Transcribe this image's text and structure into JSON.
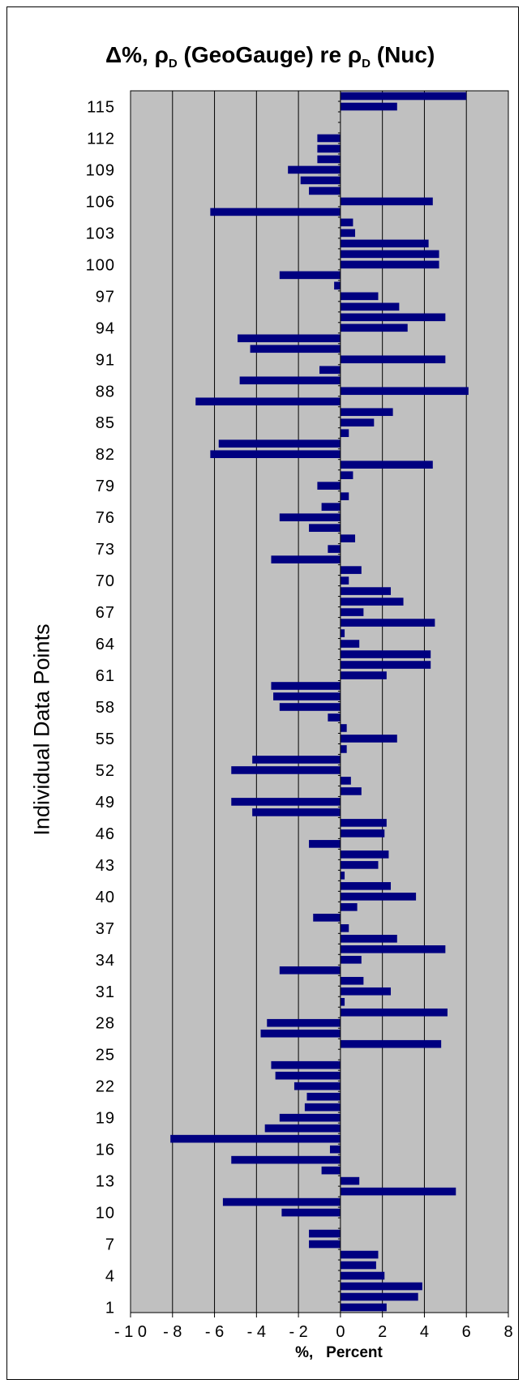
{
  "chart_data": {
    "type": "bar",
    "orientation": "horizontal",
    "title": {
      "delta": "Δ%,",
      "rho1": "ρ",
      "sub1": "D",
      "mid": "(GeoGauge) re",
      "rho2": "ρ",
      "sub2": "D",
      "end": "(Nuc)"
    },
    "xlabel": "%,   Percent",
    "ylabel": "Individual Data Points",
    "xlim": [
      -10,
      8
    ],
    "xticks": [
      -10,
      -8,
      -6,
      -4,
      -2,
      0,
      2,
      4,
      6,
      8
    ],
    "xtick_labels": [
      "- 1 0",
      "- 8",
      "- 6",
      "- 4",
      "- 2",
      "0",
      "2",
      "4",
      "6",
      "8"
    ],
    "ytick_labels": [
      "1",
      "4",
      "7",
      "10",
      "13",
      "16",
      "19",
      "22",
      "25",
      "28",
      "31",
      "34",
      "37",
      "40",
      "43",
      "46",
      "49",
      "52",
      "55",
      "58",
      "61",
      "64",
      "67",
      "70",
      "73",
      "76",
      "79",
      "82",
      "85",
      "88",
      "91",
      "94",
      "97",
      "100",
      "103",
      "106",
      "109",
      "112",
      "115"
    ],
    "ylim": [
      1,
      115
    ],
    "grid": "vertical",
    "bar_color": "#000080",
    "plot_background": "#c0c0c0",
    "values": [
      2.2,
      3.7,
      3.9,
      2.1,
      1.7,
      1.8,
      -1.5,
      -1.5,
      0,
      -2.8,
      -5.6,
      5.5,
      0.9,
      -0.9,
      -5.2,
      -0.5,
      -8.1,
      -3.6,
      -2.9,
      -1.7,
      -1.6,
      -2.2,
      -3.1,
      -3.3,
      0,
      4.8,
      -3.8,
      -3.5,
      5.1,
      0.2,
      2.4,
      1.1,
      -2.9,
      1.0,
      5.0,
      2.7,
      0.4,
      -1.3,
      0.8,
      3.6,
      2.4,
      0.2,
      1.8,
      2.3,
      -1.5,
      2.1,
      2.2,
      -4.2,
      -5.2,
      1.0,
      0.5,
      -5.2,
      -4.2,
      0.3,
      2.7,
      0.3,
      -0.6,
      -2.9,
      -3.2,
      -3.3,
      2.2,
      4.3,
      4.3,
      0.9,
      0.2,
      4.5,
      1.1,
      3.0,
      2.4,
      0.4,
      1.0,
      -3.3,
      -0.6,
      0.7,
      -1.5,
      -2.9,
      -0.9,
      0.4,
      -1.1,
      0.6,
      4.4,
      -6.2,
      -5.8,
      0.4,
      1.6,
      2.5,
      -6.9,
      6.1,
      -4.8,
      -1.0,
      5.0,
      -4.3,
      -4.9,
      3.2,
      5.0,
      2.8,
      1.8,
      -0.3,
      -2.9,
      4.7,
      4.7,
      4.2,
      0.7,
      0.6,
      -6.2,
      4.4,
      -1.5,
      -1.9,
      -2.5,
      -1.1,
      -1.1,
      -1.1,
      0,
      0,
      2.7,
      6.0
    ]
  }
}
